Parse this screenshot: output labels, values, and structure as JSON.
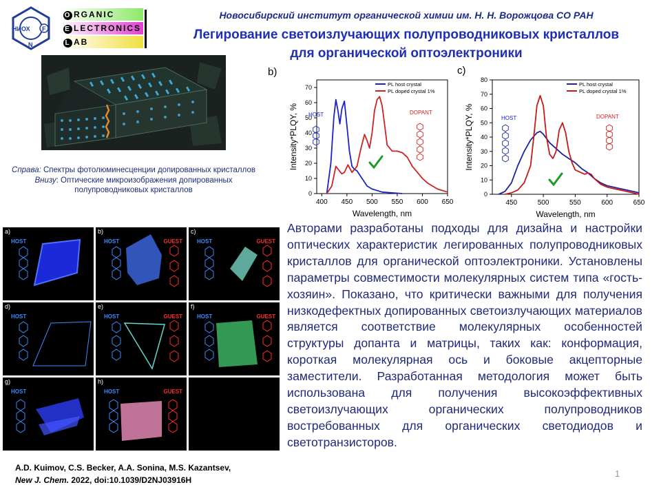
{
  "header": {
    "institute": "Новосибирский институт органической химии им. Н. Н. Ворожцова СО РАН",
    "title_line1": "Легирование светоизлучающих полупроводниковых кристаллов",
    "title_line2": "для органической оптоэлектроники"
  },
  "logos": {
    "nioch": "НИОХ",
    "nioch_f": "F",
    "nioch_n": "N",
    "olab_rows": [
      {
        "letter": "O",
        "rest": "RGANIC"
      },
      {
        "letter": "E",
        "rest": "LECTRONICS"
      },
      {
        "letter": "L",
        "rest": "AB"
      }
    ]
  },
  "caption": {
    "line1_italic": "Справа:",
    "line1_text": " Спектры фотолюминесценции допированных кристаллов",
    "line2_italic": "Внизу",
    "line2_text": ": Оптические микроизображения допированных полупроводниковых кристаллов"
  },
  "chart_data": [
    {
      "type": "line",
      "panel": "b)",
      "xlabel": "Wavelength, nm",
      "ylabel": "Intensity*PLQY, %",
      "xlim": [
        390,
        650
      ],
      "ylim": [
        0,
        75
      ],
      "xticks": [
        400,
        450,
        500,
        550,
        600,
        650
      ],
      "yticks": [
        0,
        10,
        20,
        30,
        40,
        50,
        60,
        70
      ],
      "annotations": [
        "HOST",
        "DOPANT"
      ],
      "series": [
        {
          "name": "PL host crystal",
          "color": "#1a22c8",
          "x": [
            410,
            418,
            424,
            428,
            432,
            436,
            440,
            445,
            450,
            455,
            460,
            465,
            470,
            480,
            490,
            500,
            520,
            540,
            560
          ],
          "y": [
            0,
            20,
            50,
            62,
            55,
            46,
            56,
            61,
            45,
            28,
            18,
            16,
            15,
            10,
            5,
            3,
            1,
            0.5,
            0
          ]
        },
        {
          "name": "PL doped crystal 1%",
          "color": "#d02020",
          "x": [
            410,
            420,
            428,
            435,
            440,
            445,
            452,
            460,
            470,
            478,
            485,
            490,
            495,
            500,
            505,
            510,
            515,
            520,
            525,
            530,
            540,
            550,
            560,
            570,
            580,
            590,
            600,
            610,
            620,
            630,
            640,
            650
          ],
          "y": [
            0,
            5,
            18,
            15,
            13,
            14,
            19,
            14,
            18,
            30,
            39,
            35,
            30,
            40,
            55,
            62,
            64,
            58,
            45,
            32,
            28,
            28,
            27,
            24,
            18,
            14,
            10,
            7,
            5,
            3,
            2,
            1
          ]
        }
      ]
    },
    {
      "type": "line",
      "panel": "c)",
      "xlabel": "Wavelength, nm",
      "ylabel": "Intensity*PLQY, %",
      "xlim": [
        420,
        650
      ],
      "ylim": [
        0,
        80
      ],
      "xticks": [
        450,
        500,
        550,
        600,
        650
      ],
      "yticks": [
        0,
        10,
        20,
        30,
        40,
        50,
        60,
        70,
        80
      ],
      "annotations": [
        "HOST",
        "DOPANT"
      ],
      "series": [
        {
          "name": "PL host crystal",
          "color": "#1a22a0",
          "x": [
            430,
            440,
            450,
            460,
            470,
            480,
            490,
            495,
            500,
            510,
            520,
            530,
            540,
            550,
            560,
            570,
            580,
            590,
            600,
            610,
            620,
            630,
            640,
            650
          ],
          "y": [
            0,
            2,
            8,
            20,
            30,
            38,
            43,
            44,
            42,
            36,
            32,
            28,
            25,
            22,
            18,
            15,
            11,
            8,
            6,
            5,
            4,
            3,
            2,
            1
          ]
        },
        {
          "name": "PL doped crystal 1%",
          "color": "#c81818",
          "x": [
            440,
            450,
            460,
            470,
            480,
            485,
            490,
            495,
            500,
            505,
            510,
            515,
            520,
            525,
            530,
            535,
            540,
            545,
            550,
            560,
            565,
            570,
            575,
            580,
            590,
            600,
            610,
            620,
            630,
            640,
            650
          ],
          "y": [
            0,
            1,
            3,
            8,
            20,
            40,
            62,
            69,
            62,
            40,
            28,
            25,
            30,
            45,
            50,
            43,
            30,
            22,
            17,
            15,
            14,
            15,
            14,
            11,
            7,
            5,
            4,
            3,
            2,
            1,
            0
          ]
        }
      ]
    }
  ],
  "micro": {
    "cells": [
      {
        "tag": "a)",
        "host": "HOST",
        "guest": ""
      },
      {
        "tag": "b)",
        "host": "HOST",
        "guest": "GUEST"
      },
      {
        "tag": "c)",
        "host": "HOST",
        "guest": "GUEST"
      },
      {
        "tag": "d)",
        "host": "HOST",
        "guest": ""
      },
      {
        "tag": "e)",
        "host": "HOST",
        "guest": "GUEST"
      },
      {
        "tag": "f)",
        "host": "HOST",
        "guest": "GUEST"
      },
      {
        "tag": "g)",
        "host": "HOST",
        "guest": ""
      },
      {
        "tag": "h)",
        "host": "HOST",
        "guest": "GUEST"
      }
    ]
  },
  "body_text": "Авторами разработаны подходы для дизайна и настройки оптических характеристик легированных полупроводниковых кристаллов для органической оптоэлектроники. Установлены параметры совместимости молекулярных систем типа «гость-хозяин». Показано, что критически важными для получения низкодефектных допированных светоизлучающих материалов является соответствие молекулярных особенностей структуры допанта и матрицы, таких как: конформация, короткая молекулярная ось и боковые акцепторные заместители. Разработанная методология может быть использована для получения высокоэффективных светоизлучающих органических полупроводников востребованных для органических светодиодов и светотранзисторов.",
  "citation": {
    "authors": "A.D. Kuimov, C.S. Becker, A.A. Sonina, M.S. Kazantsev,",
    "journal": "New J. Chem.",
    "rest": " 2022, doi:10.1039/D2NJ03916H"
  },
  "page_number": "1"
}
